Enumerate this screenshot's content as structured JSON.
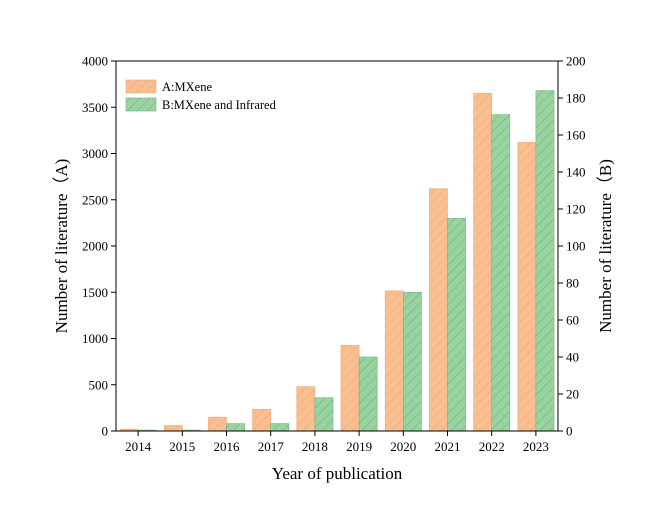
{
  "chart_data": {
    "type": "bar",
    "categories": [
      "2014",
      "2015",
      "2016",
      "2017",
      "2018",
      "2019",
      "2020",
      "2021",
      "2022",
      "2023"
    ],
    "series": [
      {
        "name": "A:MXene",
        "axis": "left",
        "color": "#F9BF91",
        "hatch_color": "#F0A878",
        "values": [
          20,
          60,
          150,
          235,
          480,
          925,
          1515,
          2620,
          3650,
          3120
        ]
      },
      {
        "name": "B:MXene and Infrared",
        "axis": "right",
        "color": "#9AD3A2",
        "hatch_color": "#6DB67A",
        "values": [
          0.5,
          0.5,
          4,
          4,
          18,
          40,
          75,
          115,
          171,
          184
        ]
      }
    ],
    "xlabel": "Year of publication",
    "ylabel_left": "Number of literature（A)",
    "ylabel_right": "Number of literature（B)",
    "ylim_left": [
      0,
      4000
    ],
    "ylim_right": [
      0,
      200
    ],
    "yticks_left": [
      0,
      500,
      1000,
      1500,
      2000,
      2500,
      3000,
      3500,
      4000
    ],
    "yticks_right": [
      0,
      20,
      40,
      60,
      80,
      100,
      120,
      140,
      160,
      180,
      200
    ],
    "grid": false,
    "legend_position": "top-left"
  }
}
